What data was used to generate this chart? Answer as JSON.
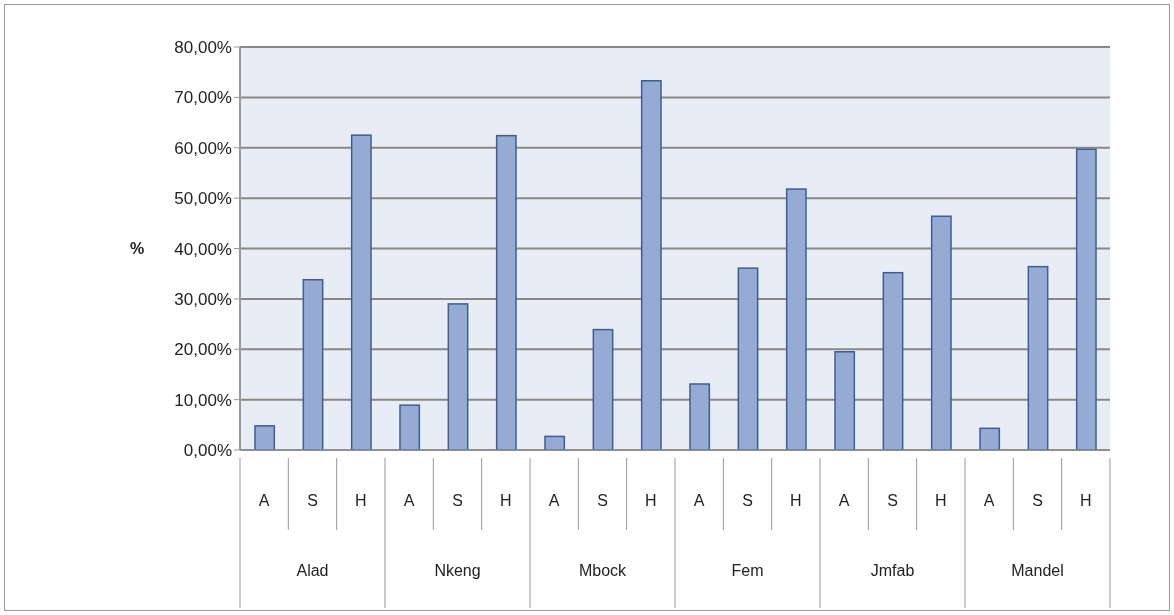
{
  "chart_data": {
    "type": "bar",
    "ylabel": "%",
    "categories": [
      "A",
      "S",
      "H",
      "A",
      "S",
      "H",
      "A",
      "S",
      "H",
      "A",
      "S",
      "H",
      "A",
      "S",
      "H",
      "A",
      "S",
      "H"
    ],
    "annotations": [
      "Alad",
      "Nkeng",
      "Mbock",
      "Fem",
      "Jmfab",
      "Mandel"
    ],
    "values": [
      4.8,
      33.8,
      62.5,
      8.9,
      29.0,
      62.4,
      2.7,
      23.9,
      73.3,
      13.1,
      36.1,
      51.8,
      19.5,
      35.2,
      46.4,
      4.3,
      36.4,
      59.7
    ],
    "color": "#95abd4",
    "ylim": [
      0,
      80
    ],
    "yticks": [
      {
        "value": 0,
        "label": "0,00%"
      },
      {
        "value": 10,
        "label": "10,00%"
      },
      {
        "value": 20,
        "label": "20,00%"
      },
      {
        "value": 30,
        "label": "30,00%"
      },
      {
        "value": 40,
        "label": "40,00%"
      },
      {
        "value": 50,
        "label": "50,00%"
      },
      {
        "value": 60,
        "label": "60,00%"
      },
      {
        "value": 70,
        "label": "70,00%"
      },
      {
        "value": 80,
        "label": "80,00%"
      }
    ],
    "grid": "y"
  }
}
